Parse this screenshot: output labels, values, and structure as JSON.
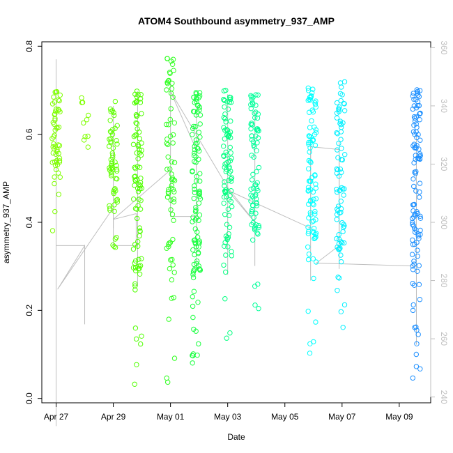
{
  "chart_data": {
    "type": "scatter",
    "title": "ATOM4 Southbound asymmetry_937_AMP",
    "xlabel": "Date",
    "ylabel": "asymmetry_937_AMP",
    "x_tick_labels": [
      "Apr 27",
      "Apr 29",
      "May 01",
      "May 03",
      "May 05",
      "May 07",
      "May 09"
    ],
    "x_tick_days": [
      0,
      2,
      4,
      6,
      8,
      10,
      12
    ],
    "x_domain_days": [
      -0.5,
      13.1
    ],
    "ylim": [
      -0.01,
      0.81
    ],
    "y_ticks": [
      0.0,
      0.2,
      0.4,
      0.6,
      0.8
    ],
    "y_tick_labels": [
      "0.0",
      "0.2",
      "0.4",
      "0.6",
      "0.8"
    ],
    "y2lim": [
      238,
      362
    ],
    "y2_ticks": [
      240,
      260,
      280,
      300,
      320,
      340,
      360
    ],
    "y2_tick_labels": [
      "240",
      "260",
      "280",
      "300",
      "320",
      "340",
      "360"
    ],
    "marker": "open-circle",
    "grid": false,
    "legend": "none",
    "line_color": "#bebebe",
    "right_axis_color": "#bfbfbf",
    "clusters": [
      {
        "day": 0.0,
        "color": "#7fff00",
        "n": 55,
        "lo": 0.38,
        "hi": 0.7
      },
      {
        "day": 1.0,
        "color": "#7fff00",
        "n": 10,
        "lo": 0.49,
        "hi": 0.7
      },
      {
        "day": 2.0,
        "color": "#60ff00",
        "n": 60,
        "lo": 0.29,
        "hi": 0.68
      },
      {
        "day": 2.85,
        "color": "#50ff00",
        "n": 90,
        "lo": 0.01,
        "hi": 0.7
      },
      {
        "day": 4.0,
        "color": "#30ff20",
        "n": 70,
        "lo": 0.03,
        "hi": 0.78
      },
      {
        "day": 4.9,
        "color": "#1aff40",
        "n": 110,
        "lo": 0.06,
        "hi": 0.7
      },
      {
        "day": 6.0,
        "color": "#00ff80",
        "n": 90,
        "lo": 0.12,
        "hi": 0.7
      },
      {
        "day": 6.95,
        "color": "#00ff9a",
        "n": 80,
        "lo": 0.2,
        "hi": 0.69
      },
      {
        "day": 8.95,
        "color": "#00ffff",
        "n": 90,
        "lo": 0.1,
        "hi": 0.71
      },
      {
        "day": 9.95,
        "color": "#00f0ff",
        "n": 80,
        "lo": 0.13,
        "hi": 0.72
      },
      {
        "day": 12.6,
        "color": "#1e90ff",
        "n": 110,
        "lo": 0.01,
        "hi": 0.71
      }
    ],
    "line_path": [
      [
        0.0,
        233
      ],
      [
        0.0,
        292
      ],
      [
        1.0,
        292
      ],
      [
        1.0,
        265
      ],
      [
        1.0,
        292
      ],
      [
        0.05,
        277
      ],
      [
        2.0,
        305
      ],
      [
        2.0,
        292
      ],
      [
        2.8,
        292
      ],
      [
        2.8,
        303
      ],
      [
        2.0,
        301
      ],
      [
        4.0,
        318
      ],
      [
        4.0,
        302
      ],
      [
        4.9,
        302
      ],
      [
        4.9,
        325
      ],
      [
        4.0,
        345
      ],
      [
        6.0,
        312
      ],
      [
        6.95,
        300
      ],
      [
        6.0,
        311
      ],
      [
        8.9,
        298
      ],
      [
        8.9,
        326
      ],
      [
        9.9,
        325
      ],
      [
        9.9,
        292
      ],
      [
        9.1,
        286
      ],
      [
        12.6,
        285
      ],
      [
        12.6,
        258
      ],
      [
        12.6,
        262
      ]
    ],
    "vertical_spans": [
      {
        "day": 0.0,
        "lo": 230,
        "hi": 356
      },
      {
        "day": 1.0,
        "lo": 265,
        "hi": 292
      },
      {
        "day": 2.0,
        "lo": 298,
        "hi": 340
      },
      {
        "day": 2.85,
        "lo": 278,
        "hi": 345
      },
      {
        "day": 4.0,
        "lo": 302,
        "hi": 348
      },
      {
        "day": 4.9,
        "lo": 283,
        "hi": 340
      },
      {
        "day": 6.0,
        "lo": 282,
        "hi": 344
      },
      {
        "day": 6.95,
        "lo": 285,
        "hi": 338
      },
      {
        "day": 8.9,
        "lo": 280,
        "hi": 328
      },
      {
        "day": 9.9,
        "lo": 284,
        "hi": 328
      },
      {
        "day": 12.6,
        "lo": 258,
        "hi": 330
      }
    ]
  }
}
